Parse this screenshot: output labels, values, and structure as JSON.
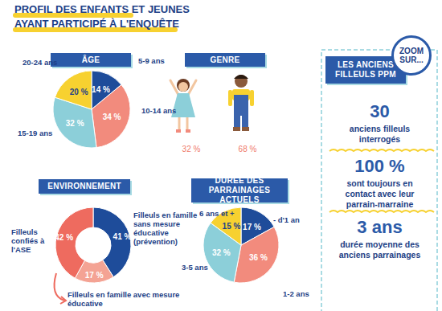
{
  "title": [
    "PROFIL DES ENFANTS ET JEUNES",
    "AYANT PARTICIPÉ À L'ENQUÊTE"
  ],
  "chart_data": [
    {
      "type": "pie",
      "title": "ÂGE",
      "categories": [
        "5-9 ans",
        "10-14 ans",
        "15-19 ans",
        "20-24 ans"
      ],
      "values": [
        14,
        34,
        32,
        20
      ],
      "value_labels": [
        "14 %",
        "34 %",
        "32 %",
        "20 %"
      ],
      "colors": [
        "#1e4c9a",
        "#f28b7d",
        "#8ccfd9",
        "#f7d130"
      ],
      "data_labels": true
    },
    {
      "type": "pictogram",
      "title": "GENRE",
      "values": [
        32,
        68
      ],
      "value_labels": [
        "32 %",
        "68 %"
      ],
      "color": "#ef7b6b",
      "data_labels": true
    },
    {
      "type": "pie",
      "title": "ENVIRONNEMENT",
      "categories": [
        "Filleuls en famille sans mesure éducative (prévention)",
        "Filleuls en famille avec mesure éducative",
        "Filleuls confiés à l'ASE"
      ],
      "values": [
        41,
        17,
        42
      ],
      "value_labels": [
        "41 %",
        "17 %",
        "42 %"
      ],
      "colors": [
        "#1e4c9a",
        "#f4a394",
        "#ee6b5f"
      ],
      "data_labels": true
    },
    {
      "type": "pie",
      "title": "DURÉE DES PARRAINAGES ACTUELS",
      "categories": [
        "- d'1 an",
        "1-2 ans",
        "3-5 ans",
        "6 ans et +"
      ],
      "values": [
        17,
        36,
        32,
        15
      ],
      "value_labels": [
        "17 %",
        "36 %",
        "32 %",
        "15 %"
      ],
      "colors": [
        "#1e4c9a",
        "#f28b7d",
        "#8ccfd9",
        "#f7d130"
      ],
      "data_labels": true
    }
  ],
  "zoom": {
    "badge": [
      "ZOOM",
      "SUR..."
    ],
    "title": [
      "LES ANCIENS",
      "FILLEULS PPM"
    ],
    "stats": [
      {
        "number": "30",
        "text": "anciens filleuls interrogés"
      },
      {
        "number": "100 %",
        "text": "sont toujours en contact avec leur parrain-marraine"
      },
      {
        "number": "3 ans",
        "text": "durée moyenne des anciens parrainages"
      }
    ]
  }
}
